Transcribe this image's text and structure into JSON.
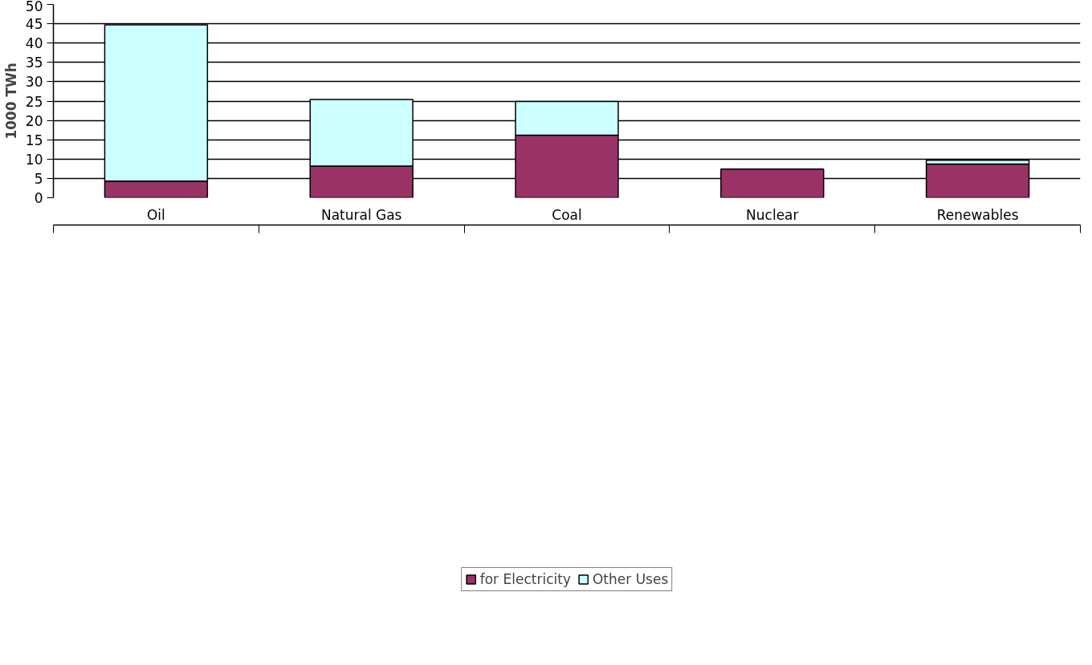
{
  "chart_data": {
    "type": "bar",
    "stacked": true,
    "ylabel": "1000 TWh",
    "categories": [
      "Oil",
      "Natural Gas",
      "Coal",
      "Nuclear",
      "Renewables"
    ],
    "series": [
      {
        "name": "for Electricity",
        "color": "#993366",
        "values": [
          4.3,
          8.2,
          16.2,
          7.4,
          8.7
        ]
      },
      {
        "name": "Other Uses",
        "color": "#ccffff",
        "values": [
          40.4,
          17.2,
          8.7,
          0,
          1.0
        ]
      }
    ],
    "ylim": [
      0,
      50
    ],
    "yticks": [
      0,
      5,
      10,
      15,
      20,
      25,
      30,
      35,
      40,
      45,
      50
    ],
    "grid": "y",
    "legend": "bottom"
  }
}
